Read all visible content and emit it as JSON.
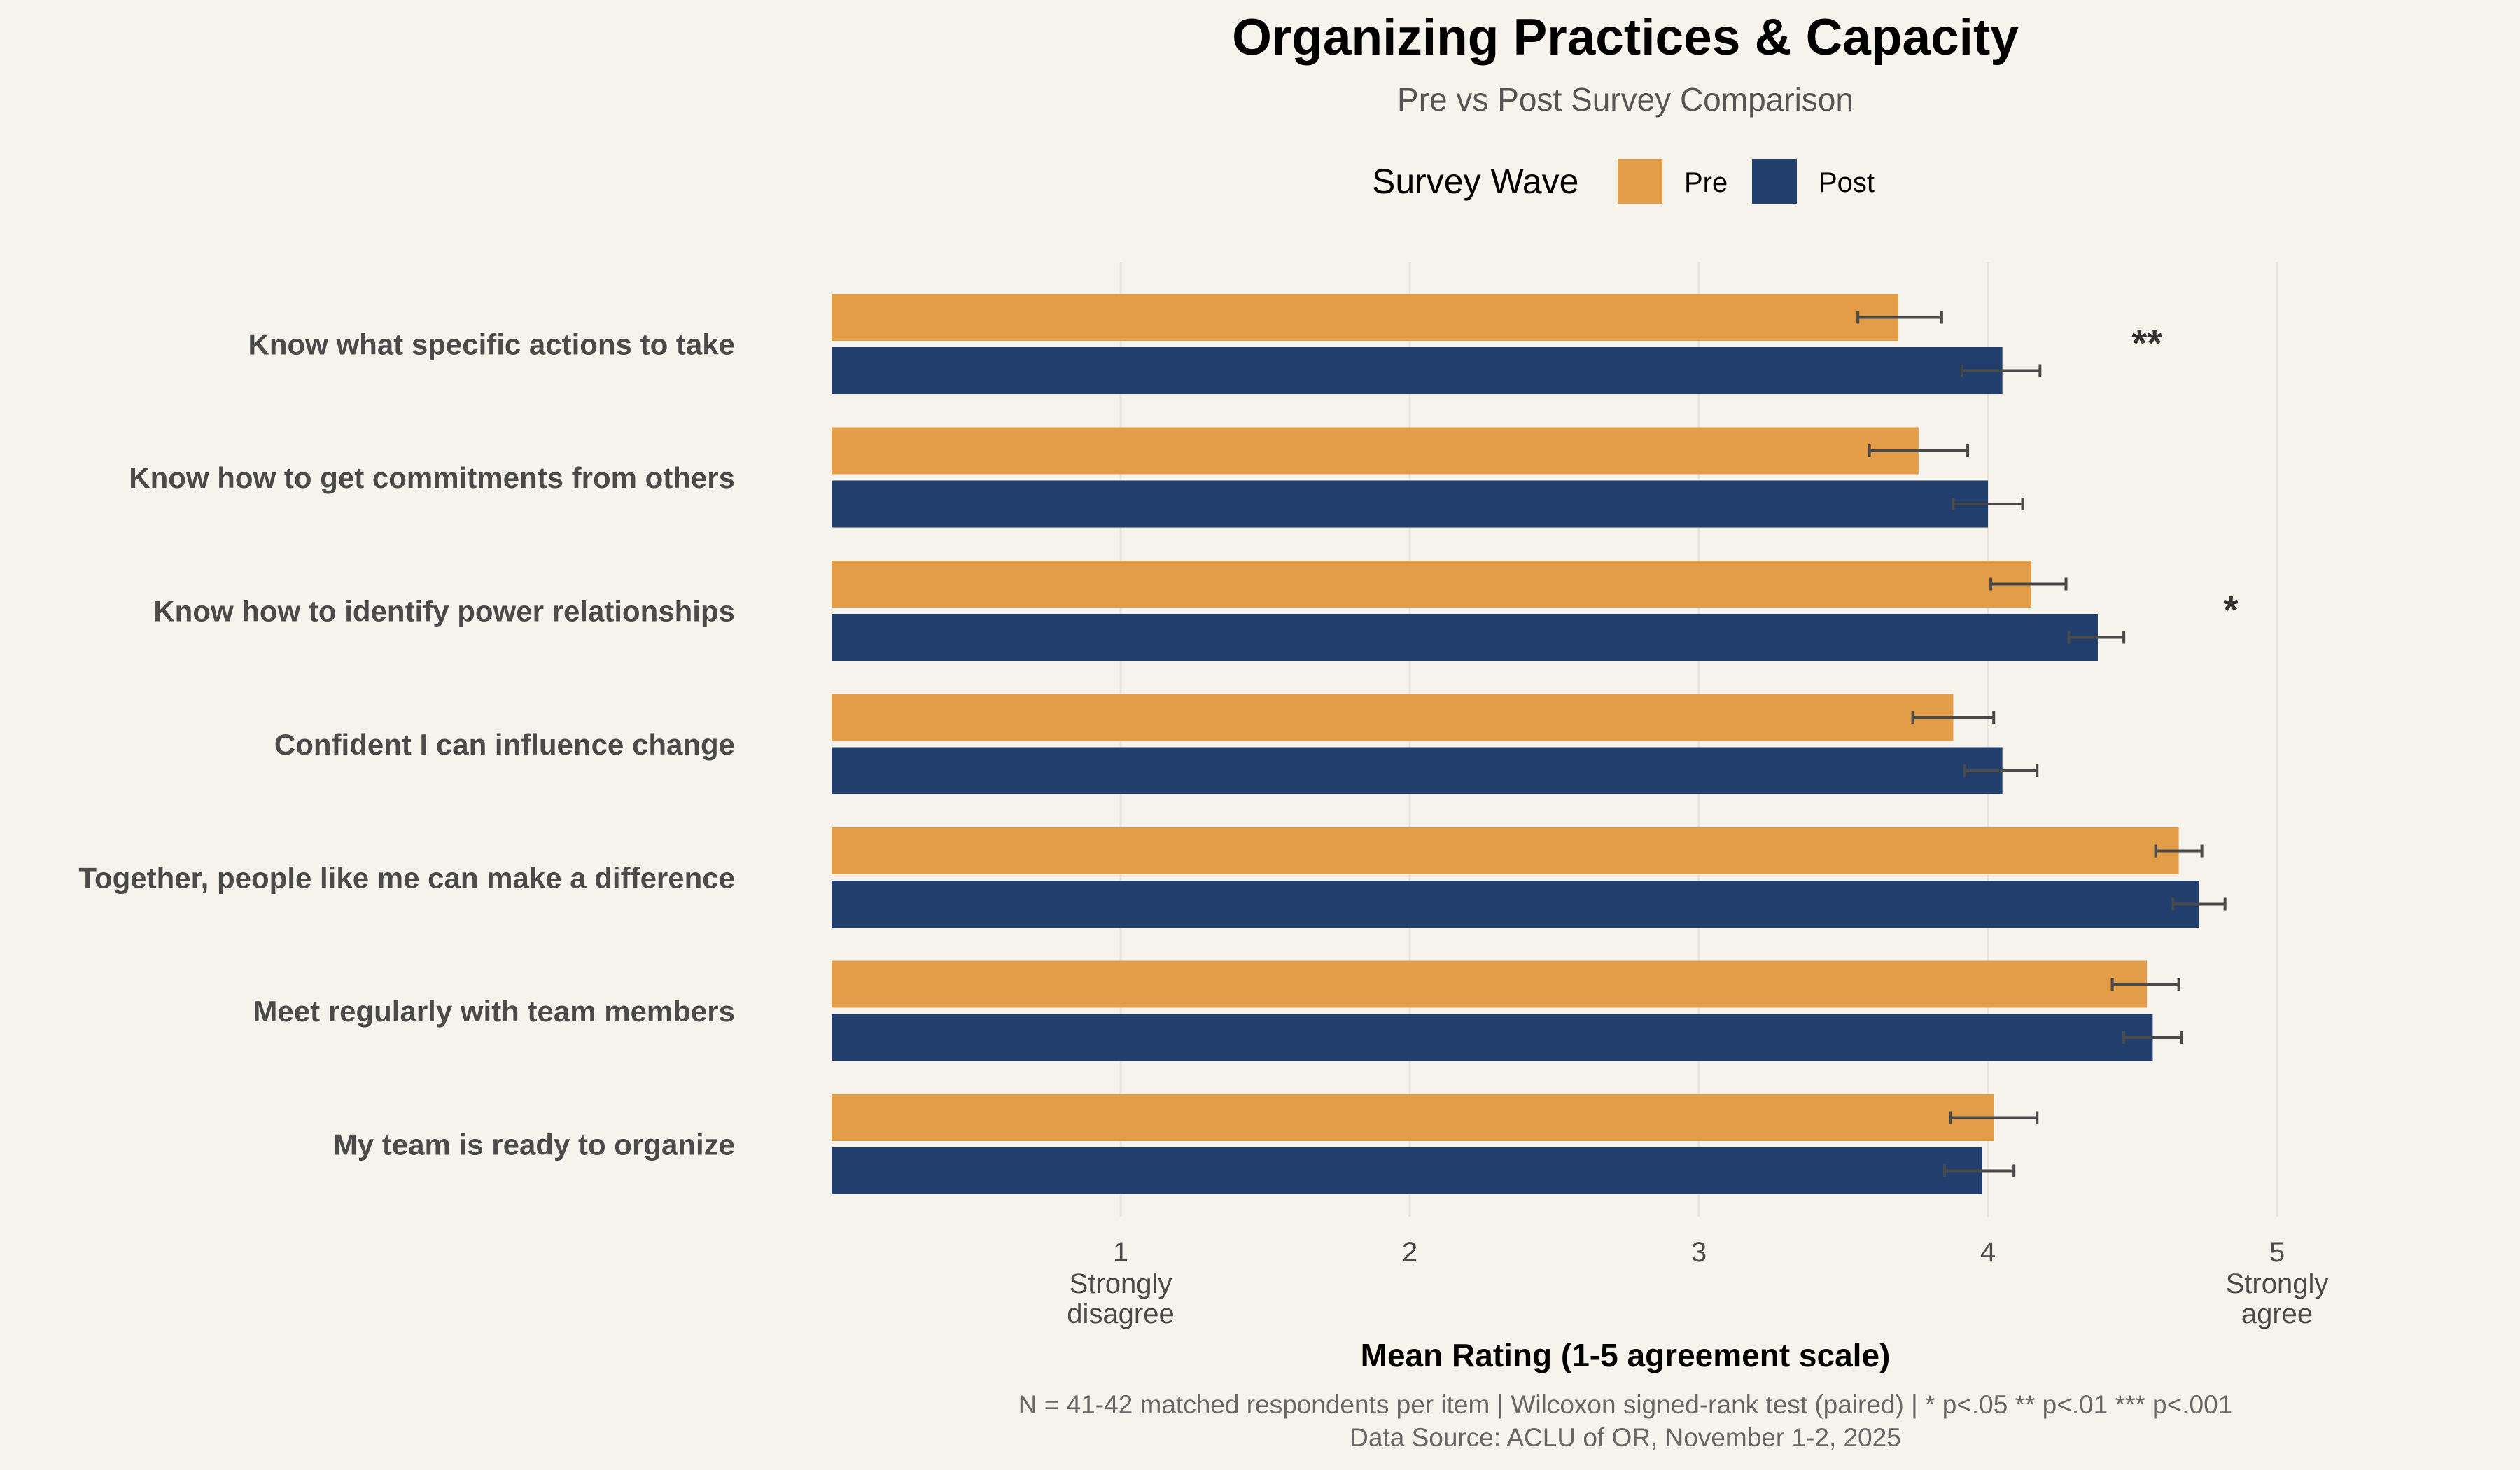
{
  "chart_data": {
    "type": "bar",
    "orientation": "horizontal",
    "title": "Organizing Practices & Capacity",
    "subtitle": "Pre vs Post Survey Comparison",
    "legend": {
      "title": "Survey Wave",
      "placement": "top-center",
      "entries": [
        {
          "label": "Pre",
          "color": "#e39c48"
        },
        {
          "label": "Post",
          "color": "#213e6c"
        }
      ]
    },
    "categories": [
      "Know what specific actions to take",
      "Know how to get commitments from others",
      "Know how to identify power relationships",
      "Confident I can influence change",
      "Together, people like me can make a difference",
      "Meet regularly with team members",
      "My team is ready to organize"
    ],
    "series": [
      {
        "name": "Pre",
        "color": "#e39c48",
        "values": [
          3.69,
          3.76,
          4.15,
          3.88,
          4.66,
          4.55,
          4.02
        ],
        "error_low": [
          3.55,
          3.59,
          4.01,
          3.74,
          4.58,
          4.43,
          3.87
        ],
        "error_high": [
          3.84,
          3.93,
          4.27,
          4.02,
          4.74,
          4.66,
          4.17
        ]
      },
      {
        "name": "Post",
        "color": "#213e6c",
        "values": [
          4.05,
          4.0,
          4.38,
          4.05,
          4.73,
          4.57,
          3.98
        ],
        "error_low": [
          3.91,
          3.88,
          4.28,
          3.92,
          4.64,
          4.47,
          3.85
        ],
        "error_high": [
          4.18,
          4.12,
          4.47,
          4.17,
          4.82,
          4.67,
          4.09
        ]
      }
    ],
    "significance": [
      {
        "category_index": 0,
        "marker": "**",
        "x": 4.55
      },
      {
        "category_index": 2,
        "marker": "*",
        "x": 4.84
      }
    ],
    "xlim": [
      0,
      5.25
    ],
    "xticks": [
      {
        "value": 1,
        "label": "1",
        "sublabel": [
          "Strongly",
          "disagree"
        ]
      },
      {
        "value": 2,
        "label": "2",
        "sublabel": []
      },
      {
        "value": 3,
        "label": "3",
        "sublabel": []
      },
      {
        "value": 4,
        "label": "4",
        "sublabel": []
      },
      {
        "value": 5,
        "label": "5",
        "sublabel": [
          "Strongly",
          "agree"
        ]
      }
    ],
    "xlabel": "Mean Rating (1-5 agreement scale)",
    "ylabel": "",
    "grid": "vertical",
    "caption": [
      "N = 41-42 matched respondents per item  |  Wilcoxon signed-rank test (paired)  |  * p<.05  ** p<.01  *** p<.001",
      "Data Source: ACLU of OR, November 1-2, 2025"
    ]
  }
}
